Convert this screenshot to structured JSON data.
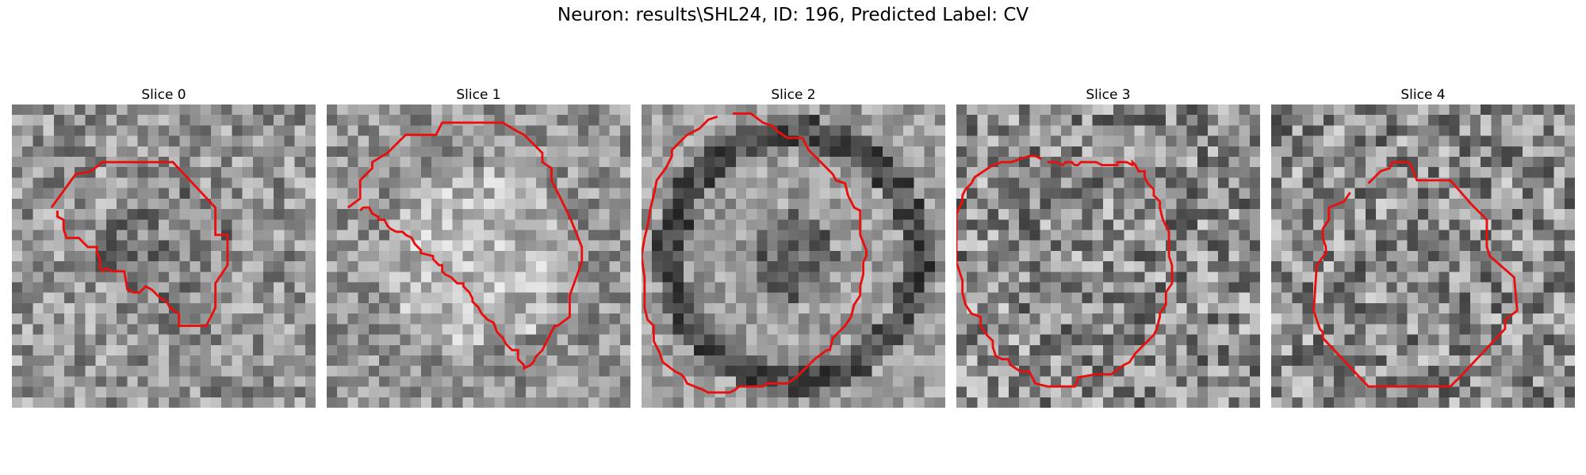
{
  "figure": {
    "title": "Neuron: results\\SHL24, ID: 196, Predicted Label: CV"
  },
  "colors": {
    "outline": "#e8100f",
    "background": "#ffffff"
  },
  "slices": [
    {
      "title": "Slice 0"
    },
    {
      "title": "Slice 1"
    },
    {
      "title": "Slice 2"
    },
    {
      "title": "Slice 3"
    },
    {
      "title": "Slice 4"
    }
  ]
}
